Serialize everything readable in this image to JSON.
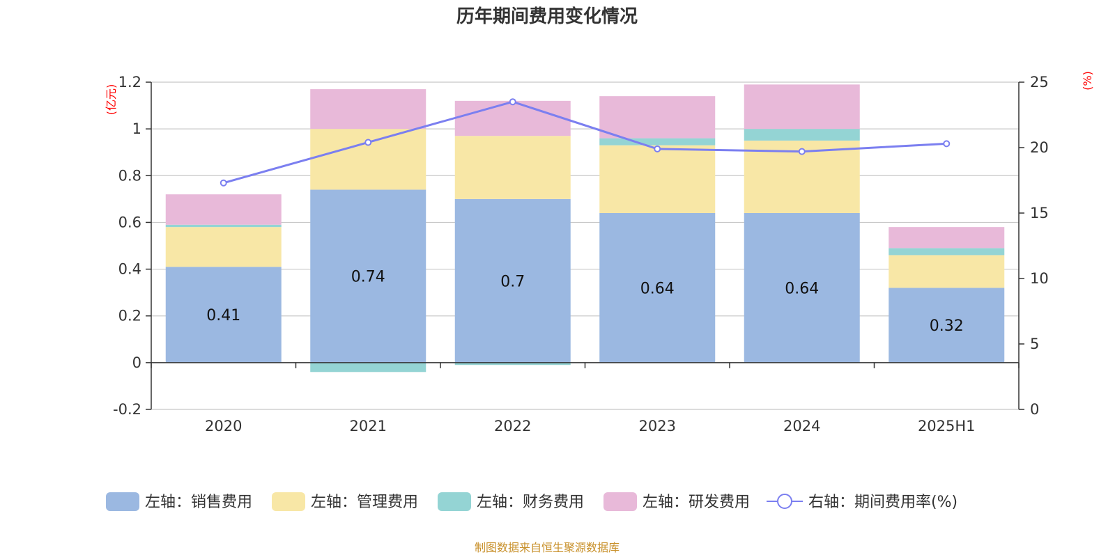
{
  "chart_data": {
    "type": "bar",
    "title": "历年期间费用变化情况",
    "categories": [
      "2020",
      "2021",
      "2022",
      "2023",
      "2024",
      "2025H1"
    ],
    "left_axis": {
      "unit": "(亿元)",
      "ylim": [
        -0.2,
        1.2
      ],
      "ticks": [
        "-0.2",
        "0",
        "0.2",
        "0.4",
        "0.6",
        "0.8",
        "1",
        "1.2"
      ]
    },
    "right_axis": {
      "unit": "(%)",
      "ylim": [
        0,
        25
      ],
      "ticks": [
        "0",
        "5",
        "10",
        "15",
        "20",
        "25"
      ]
    },
    "series": [
      {
        "name": "左轴：销售费用",
        "axis": "left",
        "kind": "bar",
        "color": "#9bb8e1",
        "values": [
          0.41,
          0.74,
          0.7,
          0.64,
          0.64,
          0.32
        ],
        "labels": [
          "0.41",
          "0.74",
          "0.7",
          "0.64",
          "0.64",
          "0.32"
        ]
      },
      {
        "name": "左轴：管理费用",
        "axis": "left",
        "kind": "bar",
        "color": "#f8e7a6",
        "values": [
          0.17,
          0.26,
          0.27,
          0.29,
          0.31,
          0.14
        ]
      },
      {
        "name": "左轴：财务费用",
        "axis": "left",
        "kind": "bar",
        "color": "#94d4d4",
        "values": [
          0.01,
          -0.04,
          -0.01,
          0.03,
          0.05,
          0.03
        ]
      },
      {
        "name": "左轴：研发费用",
        "axis": "left",
        "kind": "bar",
        "color": "#e8b9d9",
        "values": [
          0.13,
          0.17,
          0.15,
          0.18,
          0.19,
          0.09
        ]
      },
      {
        "name": "右轴：期间费用率(%)",
        "axis": "right",
        "kind": "line",
        "color": "#7b7ff0",
        "values": [
          17.3,
          20.4,
          23.5,
          19.9,
          19.7,
          20.3
        ]
      }
    ],
    "grid": true,
    "legend_position": "bottom"
  },
  "source_note": "制图数据来自恒生聚源数据库"
}
